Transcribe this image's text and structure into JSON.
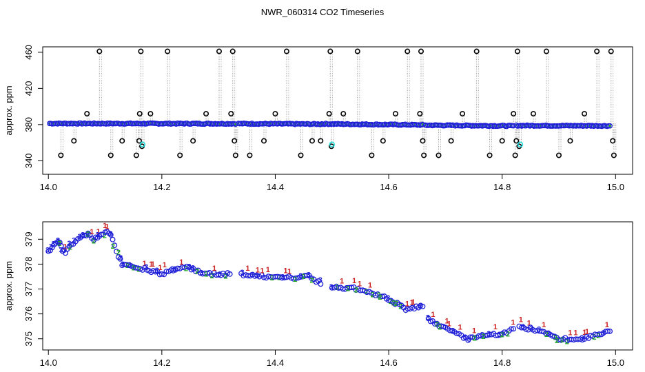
{
  "title": "NWR_060314  CO2 Timeseries",
  "chart_data": [
    {
      "type": "scatter",
      "title": "",
      "xlabel": "",
      "ylabel": "approx. ppm",
      "xlim": [
        13.99,
        15.03
      ],
      "ylim": [
        325,
        466
      ],
      "x_ticks": [
        14.0,
        14.2,
        14.4,
        14.6,
        14.8,
        15.0
      ],
      "x_tick_labels": [
        "14.0",
        "14.2",
        "14.4",
        "14.6",
        "14.8",
        "15.0"
      ],
      "y_ticks": [
        340,
        380,
        420,
        460
      ],
      "y_tick_labels": [
        "340",
        "380",
        "420",
        "460"
      ],
      "colors": {
        "main": "#1f1fd8",
        "inner": "#22aa22",
        "outlier": "#000000",
        "flag": "#22dddd",
        "drop": "#999999",
        "accent": "#cc2222"
      },
      "segments": [
        {
          "x_start": 14.002,
          "x_end": 14.33,
          "y_start": 381.2,
          "y_end": 381.0
        },
        {
          "x_start": 14.335,
          "x_end": 14.48,
          "y_start": 381.0,
          "y_end": 380.5
        },
        {
          "x_start": 14.482,
          "x_end": 14.66,
          "y_start": 380.8,
          "y_end": 379.6
        },
        {
          "x_start": 14.665,
          "x_end": 14.82,
          "y_start": 379.3,
          "y_end": 378.5
        },
        {
          "x_start": 14.825,
          "x_end": 14.99,
          "y_start": 378.9,
          "y_end": 378.6
        }
      ],
      "outliers": [
        {
          "x": 14.022,
          "y": 346
        },
        {
          "x": 14.045,
          "y": 362
        },
        {
          "x": 14.068,
          "y": 392
        },
        {
          "x": 14.09,
          "y": 461
        },
        {
          "x": 14.11,
          "y": 346
        },
        {
          "x": 14.13,
          "y": 362
        },
        {
          "x": 14.155,
          "y": 346
        },
        {
          "x": 14.16,
          "y": 362
        },
        {
          "x": 14.161,
          "y": 392
        },
        {
          "x": 14.163,
          "y": 461
        },
        {
          "x": 14.165,
          "y": 356
        },
        {
          "x": 14.18,
          "y": 392
        },
        {
          "x": 14.21,
          "y": 461
        },
        {
          "x": 14.232,
          "y": 346
        },
        {
          "x": 14.255,
          "y": 362
        },
        {
          "x": 14.278,
          "y": 392
        },
        {
          "x": 14.301,
          "y": 461
        },
        {
          "x": 14.322,
          "y": 392
        },
        {
          "x": 14.325,
          "y": 461
        },
        {
          "x": 14.328,
          "y": 362
        },
        {
          "x": 14.33,
          "y": 346
        },
        {
          "x": 14.355,
          "y": 346
        },
        {
          "x": 14.38,
          "y": 362
        },
        {
          "x": 14.4,
          "y": 392
        },
        {
          "x": 14.42,
          "y": 461
        },
        {
          "x": 14.445,
          "y": 346
        },
        {
          "x": 14.465,
          "y": 362
        },
        {
          "x": 14.48,
          "y": 362
        },
        {
          "x": 14.495,
          "y": 392
        },
        {
          "x": 14.497,
          "y": 461
        },
        {
          "x": 14.499,
          "y": 356
        },
        {
          "x": 14.52,
          "y": 392
        },
        {
          "x": 14.545,
          "y": 461
        },
        {
          "x": 14.57,
          "y": 346
        },
        {
          "x": 14.59,
          "y": 362
        },
        {
          "x": 14.612,
          "y": 392
        },
        {
          "x": 14.633,
          "y": 461
        },
        {
          "x": 14.655,
          "y": 392
        },
        {
          "x": 14.657,
          "y": 461
        },
        {
          "x": 14.66,
          "y": 362
        },
        {
          "x": 14.662,
          "y": 346
        },
        {
          "x": 14.688,
          "y": 346
        },
        {
          "x": 14.71,
          "y": 362
        },
        {
          "x": 14.73,
          "y": 392
        },
        {
          "x": 14.755,
          "y": 461
        },
        {
          "x": 14.778,
          "y": 346
        },
        {
          "x": 14.8,
          "y": 362
        },
        {
          "x": 14.82,
          "y": 392
        },
        {
          "x": 14.823,
          "y": 346
        },
        {
          "x": 14.825,
          "y": 362
        },
        {
          "x": 14.827,
          "y": 461
        },
        {
          "x": 14.83,
          "y": 356
        },
        {
          "x": 14.855,
          "y": 392
        },
        {
          "x": 14.878,
          "y": 461
        },
        {
          "x": 14.9,
          "y": 346
        },
        {
          "x": 14.92,
          "y": 362
        },
        {
          "x": 14.945,
          "y": 392
        },
        {
          "x": 14.967,
          "y": 461
        },
        {
          "x": 14.992,
          "y": 461
        },
        {
          "x": 14.995,
          "y": 362
        },
        {
          "x": 14.997,
          "y": 346
        }
      ],
      "flagged": [
        {
          "x": 14.166,
          "y": 358
        },
        {
          "x": 14.5,
          "y": 358
        },
        {
          "x": 14.832,
          "y": 358
        }
      ]
    },
    {
      "type": "scatter",
      "title": "",
      "xlabel": "",
      "ylabel": "approx. ppm",
      "xlim": [
        13.99,
        15.03
      ],
      "ylim": [
        374.55,
        379.7
      ],
      "x_ticks": [
        14.0,
        14.2,
        14.4,
        14.6,
        14.8,
        15.0
      ],
      "x_tick_labels": [
        "14.0",
        "14.2",
        "14.4",
        "14.6",
        "14.8",
        "15.0"
      ],
      "y_ticks": [
        375,
        376,
        377,
        378,
        379
      ],
      "y_tick_labels": [
        "375",
        "376",
        "377",
        "378",
        "379"
      ],
      "marker_labels": [
        "1",
        "2",
        "3"
      ],
      "colors": {
        "marker_1": "#cc2222",
        "marker_2": "#22aa22",
        "marker_3": "#1f1fd8",
        "circle": "#1f1fd8"
      },
      "series": [
        {
          "x": [
            14.0,
            14.01,
            14.02,
            14.025,
            14.03,
            14.04,
            14.06,
            14.07,
            14.08,
            14.09,
            14.1,
            14.11,
            14.12,
            14.13,
            14.15,
            14.17,
            14.2,
            14.24,
            14.28,
            14.32
          ],
          "values": [
            378.5,
            378.8,
            378.9,
            378.55,
            378.5,
            378.8,
            379.1,
            379.2,
            379.0,
            379.1,
            379.3,
            379.2,
            378.5,
            378.0,
            377.9,
            377.8,
            377.6,
            377.9,
            377.6,
            377.6
          ]
        },
        {
          "x": [
            14.34,
            14.38,
            14.42,
            14.46,
            14.48
          ],
          "values": [
            377.6,
            377.5,
            377.45,
            377.5,
            377.2
          ]
        },
        {
          "x": [
            14.5,
            14.55,
            14.6,
            14.63,
            14.66
          ],
          "values": [
            377.1,
            377.0,
            376.6,
            376.2,
            376.3
          ]
        },
        {
          "x": [
            14.67,
            14.7,
            14.74,
            14.77,
            14.8,
            14.82
          ],
          "values": [
            375.8,
            375.4,
            375.0,
            375.1,
            375.2,
            375.4
          ]
        },
        {
          "x": [
            14.83,
            14.87,
            14.9,
            14.93,
            14.96,
            14.99
          ],
          "values": [
            375.5,
            375.3,
            375.0,
            374.95,
            375.1,
            375.3
          ]
        }
      ]
    }
  ]
}
